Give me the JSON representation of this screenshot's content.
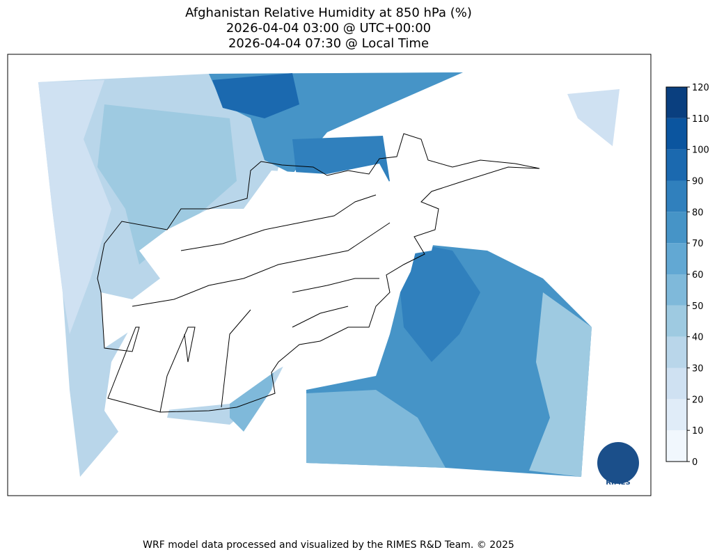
{
  "title": [
    "Afghanistan Relative Humidity at 850 hPa (%)",
    "2026-04-04 03:00 @ UTC+00:00",
    "2026-04-04 07:30 @ Local Time"
  ],
  "colorbar": {
    "ticks": [
      0,
      10,
      20,
      30,
      40,
      50,
      60,
      70,
      80,
      90,
      100,
      110,
      120
    ],
    "colors": [
      "#f1f7fd",
      "#e0ecf8",
      "#cfe1f2",
      "#b9d6ea",
      "#9ecae1",
      "#7fb9da",
      "#62a8d3",
      "#4694c7",
      "#3080bd",
      "#1b69af",
      "#0b559f",
      "#0a3f7f"
    ]
  },
  "logo": "RIMES",
  "footer": "WRF model data processed and visualized by the RIMES R&D Team. © 2025"
}
